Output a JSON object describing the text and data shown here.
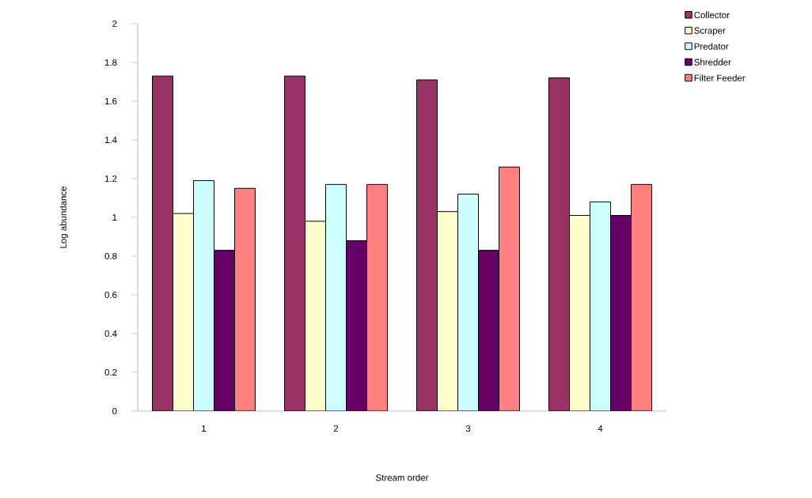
{
  "chart_data": {
    "type": "bar",
    "xlabel": "Stream order",
    "ylabel": "Log abundance",
    "categories": [
      "1",
      "2",
      "3",
      "4"
    ],
    "series": [
      {
        "name": "Collector",
        "color": "#993366",
        "values": [
          1.73,
          1.73,
          1.71,
          1.72
        ]
      },
      {
        "name": "Scraper",
        "color": "#ffffcc",
        "values": [
          1.02,
          0.98,
          1.03,
          1.01
        ]
      },
      {
        "name": "Predator",
        "color": "#ccffff",
        "values": [
          1.19,
          1.17,
          1.12,
          1.08
        ]
      },
      {
        "name": "Shredder",
        "color": "#660066",
        "values": [
          0.83,
          0.88,
          0.83,
          1.01
        ]
      },
      {
        "name": "Filter Feeder",
        "color": "#ff8080",
        "values": [
          1.15,
          1.17,
          1.26,
          1.17
        ]
      }
    ],
    "ylim": [
      0,
      2
    ],
    "yticks": [
      0,
      0.2,
      0.4,
      0.6,
      0.8,
      1,
      1.2,
      1.4,
      1.6,
      1.8,
      2
    ],
    "grid": false,
    "legend": "top right"
  }
}
